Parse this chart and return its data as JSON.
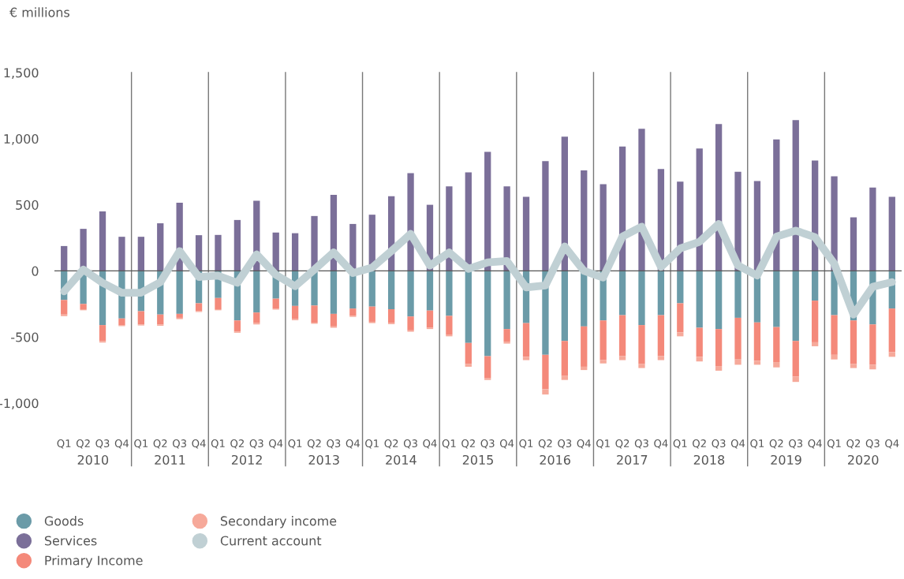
{
  "chart_data": {
    "type": "bar",
    "stacked": true,
    "ylabel": "€ millions",
    "categories": [
      "Q1",
      "Q2",
      "Q3",
      "Q4",
      "Q1",
      "Q2",
      "Q3",
      "Q4",
      "Q1",
      "Q2",
      "Q3",
      "Q4",
      "Q1",
      "Q2",
      "Q3",
      "Q4",
      "Q1",
      "Q2",
      "Q3",
      "Q4",
      "Q1",
      "Q2",
      "Q3",
      "Q4",
      "Q1",
      "Q2",
      "Q3",
      "Q4",
      "Q1",
      "Q2",
      "Q3",
      "Q4",
      "Q1",
      "Q2",
      "Q3",
      "Q4",
      "Q1",
      "Q2",
      "Q3",
      "Q4",
      "Q1",
      "Q2",
      "Q3",
      "Q4"
    ],
    "annotations": [
      "2010",
      "2011",
      "2012",
      "2013",
      "2014",
      "2015",
      "2016",
      "2017",
      "2018",
      "2019",
      "2020"
    ],
    "ylim": [
      -1000,
      1500
    ],
    "yticks": [
      {
        "value": -1000,
        "label": "-1,000"
      },
      -500,
      0,
      500,
      {
        "value": 1000,
        "label": "1,000"
      },
      {
        "value": 1500,
        "label": "1,500"
      }
    ],
    "grid": false,
    "legend": "bottom left",
    "series": [
      {
        "name": "Goods",
        "color": "#6b9ba8",
        "values": [
          -220,
          -250,
          -410,
          -360,
          -305,
          -330,
          -325,
          -245,
          -205,
          -375,
          -315,
          -210,
          -265,
          -262,
          -325,
          -285,
          -270,
          -290,
          -345,
          -300,
          -340,
          -545,
          -645,
          -440,
          -395,
          -635,
          -530,
          -420,
          -375,
          -335,
          -410,
          -335,
          -245,
          -430,
          -440,
          -355,
          -390,
          -425,
          -530,
          -225,
          -335,
          -375,
          -405,
          -285
        ]
      },
      {
        "name": "Services",
        "color": "#7b6f99",
        "values": [
          188,
          318,
          450,
          258,
          258,
          360,
          515,
          270,
          272,
          385,
          530,
          290,
          285,
          415,
          575,
          355,
          425,
          565,
          740,
          500,
          640,
          745,
          900,
          640,
          560,
          830,
          1015,
          760,
          655,
          940,
          1075,
          770,
          675,
          925,
          1110,
          750,
          680,
          995,
          1140,
          835,
          715,
          405,
          630,
          560
        ]
      },
      {
        "name": "Primary Income",
        "color": "#f4897a",
        "values": [
          -110,
          -40,
          -120,
          -50,
          -100,
          -75,
          -30,
          -60,
          -85,
          -85,
          -80,
          -75,
          -100,
          -130,
          -95,
          -55,
          -115,
          -105,
          -105,
          -130,
          -145,
          -160,
          -165,
          -95,
          -255,
          -260,
          -265,
          -305,
          -300,
          -310,
          -295,
          -310,
          -220,
          -220,
          -280,
          -315,
          -290,
          -265,
          -270,
          -315,
          -300,
          -330,
          -305,
          -330
        ]
      },
      {
        "name": "Secondary income",
        "color": "#f6a99a",
        "values": [
          -12,
          -8,
          -12,
          -8,
          -8,
          -10,
          -10,
          -6,
          -8,
          -8,
          -10,
          -8,
          -8,
          -8,
          -10,
          -8,
          -10,
          -8,
          -10,
          -10,
          -10,
          -20,
          -15,
          -15,
          -25,
          -40,
          -30,
          -25,
          -25,
          -30,
          -30,
          -30,
          -30,
          -35,
          -35,
          -40,
          -30,
          -40,
          -40,
          -30,
          -35,
          -30,
          -35,
          -35
        ]
      },
      {
        "name": "Current account",
        "type": "line",
        "color": "#c0d0d4",
        "values": [
          -155,
          10,
          -90,
          -165,
          -165,
          -86,
          150,
          -46,
          -36,
          -90,
          125,
          -30,
          -116,
          10,
          140,
          -16,
          25,
          150,
          280,
          40,
          140,
          15,
          64,
          75,
          -125,
          -110,
          185,
          0,
          -50,
          260,
          335,
          30,
          170,
          220,
          355,
          40,
          -35,
          260,
          305,
          255,
          55,
          -330,
          -120,
          -85
        ]
      }
    ]
  }
}
